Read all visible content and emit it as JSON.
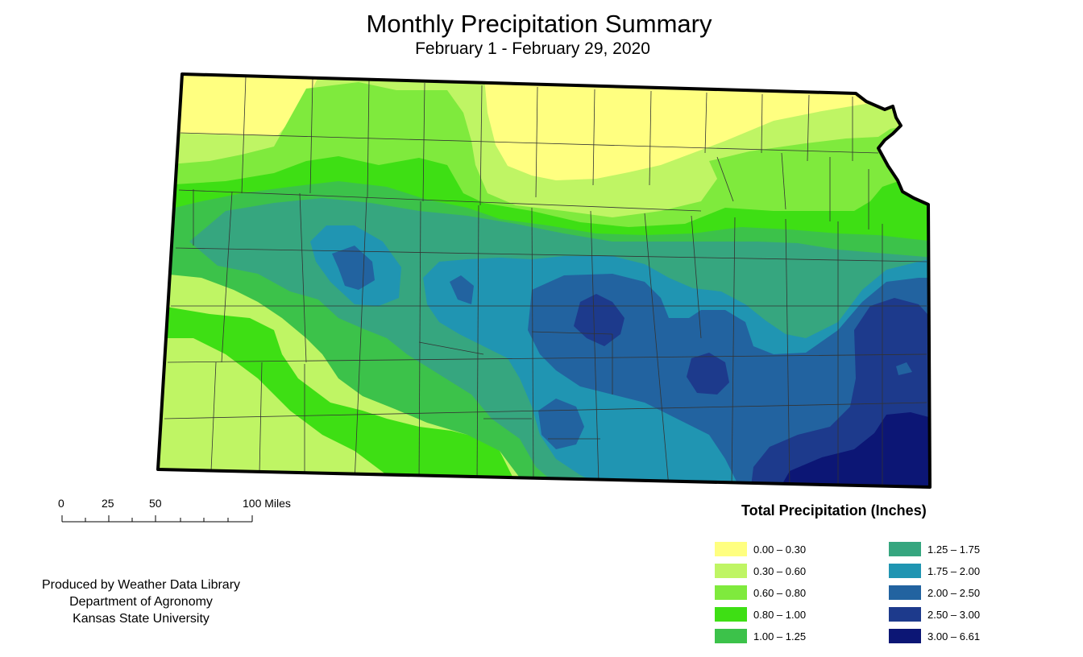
{
  "title": "Monthly Precipitation Summary",
  "subtitle": "February 1 - February 29, 2020",
  "scale_bar": {
    "labels": [
      "0",
      "25",
      "50",
      "100 Miles"
    ]
  },
  "credits": [
    "Produced by Weather Data Library",
    "Department of Agronomy",
    "Kansas State University"
  ],
  "legend": {
    "title": "Total Precipitation (Inches)",
    "classes": [
      {
        "label": "0.00 – 0.30",
        "color": "#ffff80"
      },
      {
        "label": "0.30 – 0.60",
        "color": "#bff564"
      },
      {
        "label": "0.60 – 0.80",
        "color": "#7fea3d"
      },
      {
        "label": "0.80 – 1.00",
        "color": "#3edf14"
      },
      {
        "label": "1.00 – 1.25",
        "color": "#3cc24a"
      },
      {
        "label": "1.25 – 1.75",
        "color": "#36a67f"
      },
      {
        "label": "1.75 – 2.00",
        "color": "#2095b2"
      },
      {
        "label": "2.00 – 2.50",
        "color": "#2263a0"
      },
      {
        "label": "2.50 – 3.00",
        "color": "#1d3a8c"
      },
      {
        "label": "3.00 – 6.61",
        "color": "#0c1675"
      }
    ]
  }
}
